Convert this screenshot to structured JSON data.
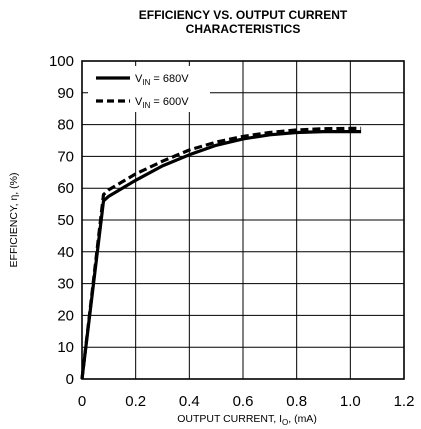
{
  "chart_data": {
    "type": "line",
    "title_lines": [
      "EFFICIENCY VS. OUTPUT CURRENT",
      "CHARACTERISTICS"
    ],
    "xlabel": {
      "main": "OUTPUT CURRENT, I",
      "sub": "O",
      "tail": ", (mA)"
    },
    "ylabel": "EFFICIENCY, η, (%)",
    "xlim": [
      0,
      1.2
    ],
    "ylim": [
      0,
      100
    ],
    "x_ticks": [
      "0",
      "0.2",
      "0.4",
      "0.6",
      "0.8",
      "1.0",
      "1.2"
    ],
    "y_ticks": [
      "0",
      "10",
      "20",
      "30",
      "40",
      "50",
      "60",
      "70",
      "80",
      "90",
      "100"
    ],
    "grid": true,
    "legend_position": "top-left",
    "series": [
      {
        "legend_prefix": "V",
        "legend_sub": "IN",
        "legend_value": " = 680V",
        "style": "solid",
        "x": [
          0,
          0.08,
          0.1,
          0.15,
          0.2,
          0.3,
          0.4,
          0.5,
          0.6,
          0.7,
          0.8,
          0.9,
          1.0,
          1.04
        ],
        "y": [
          0,
          56,
          57.5,
          60,
          62.5,
          67,
          70.5,
          73.5,
          75.5,
          76.8,
          77.5,
          77.8,
          77.8,
          77.8
        ]
      },
      {
        "legend_prefix": "V",
        "legend_sub": "IN",
        "legend_value": " = 600V",
        "style": "dashed",
        "x": [
          0,
          0.08,
          0.1,
          0.15,
          0.2,
          0.3,
          0.4,
          0.5,
          0.6,
          0.7,
          0.8,
          0.9,
          1.0,
          1.04
        ],
        "y": [
          0,
          58,
          59.5,
          62,
          64.5,
          68.5,
          72,
          74.5,
          76.3,
          77.5,
          78.3,
          78.7,
          78.8,
          78.8
        ]
      }
    ]
  }
}
